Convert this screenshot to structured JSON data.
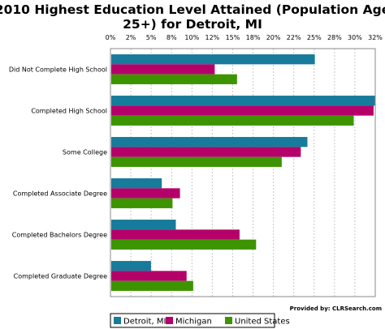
{
  "chart_data": {
    "type": "bar",
    "orientation": "horizontal",
    "title_line1": "2010 Highest Education Level Attained (Population Age",
    "title_line2": "25+) for Detroit, MI",
    "categories": [
      "Did Not Complete High School",
      "Completed High School",
      "Some College",
      "Completed Associate Degree",
      "Completed Bachelors Degree",
      "Completed Graduate Degree"
    ],
    "series": [
      {
        "name": "Detroit, MI",
        "color": "#177b9b",
        "values": [
          24.7,
          32.0,
          23.8,
          6.2,
          7.9,
          4.9
        ]
      },
      {
        "name": "Michigan",
        "color": "#b5006a",
        "values": [
          12.6,
          31.8,
          23.0,
          8.4,
          15.6,
          9.2
        ]
      },
      {
        "name": "United States",
        "color": "#3d9400",
        "values": [
          15.3,
          29.4,
          20.7,
          7.5,
          17.6,
          10.0
        ]
      }
    ],
    "xlim": [
      0,
      32
    ],
    "xticks": [
      "0%",
      "2%",
      "5%",
      "8%",
      "10%",
      "12%",
      "15%",
      "18%",
      "20%",
      "22%",
      "25%",
      "28%",
      "30%",
      "32%"
    ],
    "grid": true,
    "legend_position": "bottom",
    "credit": "Provided by: CLRSearch.com"
  }
}
